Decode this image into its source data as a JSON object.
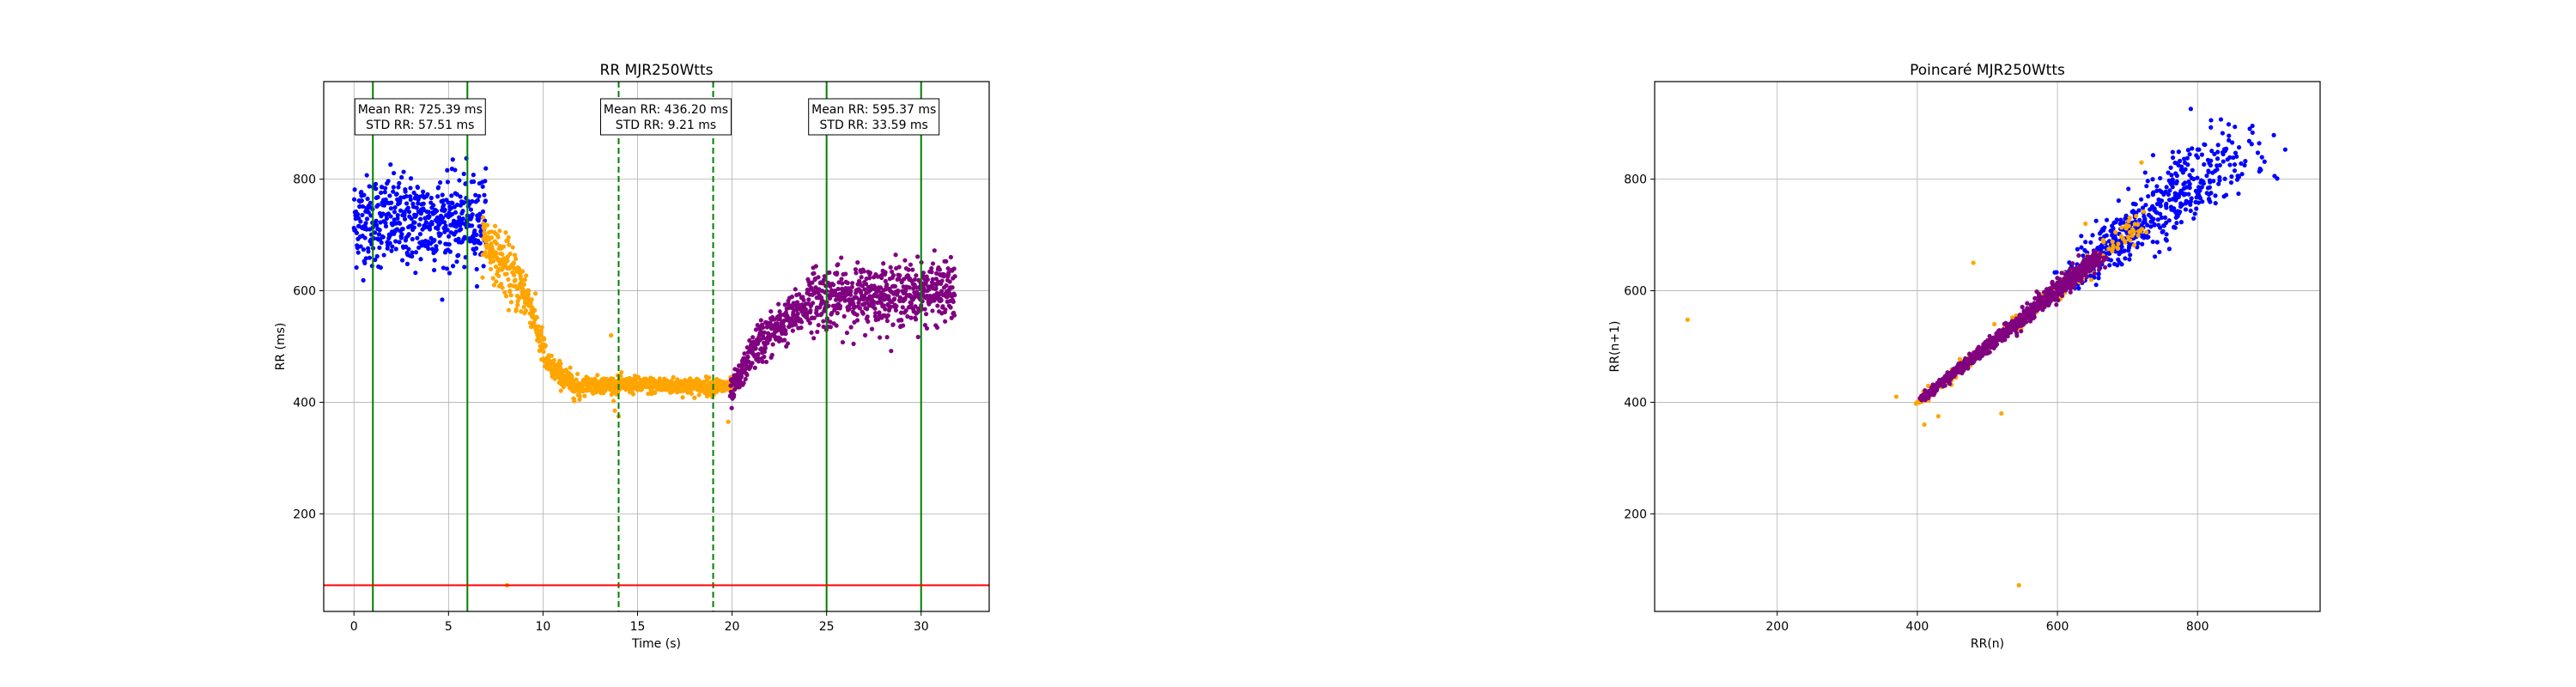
{
  "chart_data": [
    {
      "type": "scatter",
      "title": "RR MJR250Wtts",
      "xlabel": "Time (s)",
      "ylabel": "RR (ms)",
      "xlim": [
        -1.6,
        33.6
      ],
      "ylim": [
        25,
        975
      ],
      "xticks": [
        0,
        5,
        10,
        15,
        20,
        25,
        30
      ],
      "yticks": [
        200,
        400,
        600,
        800
      ],
      "grid": true,
      "series": [
        {
          "color": "#0000ff",
          "segments": [
            {
              "x0": 0.0,
              "x1": 7.0,
              "mean": 725,
              "std": 45,
              "jitter": 28
            }
          ]
        },
        {
          "color": "#ffa500",
          "segments": [
            {
              "x0": 6.8,
              "x1": 7.6,
              "from": 700,
              "to": 660,
              "jitter": 25
            },
            {
              "x0": 7.6,
              "x1": 9.2,
              "from": 660,
              "to": 590,
              "jitter": 30
            },
            {
              "x0": 9.2,
              "x1": 10.2,
              "from": 590,
              "to": 470,
              "jitter": 18
            },
            {
              "x0": 10.2,
              "x1": 12.0,
              "from": 470,
              "to": 420,
              "jitter": 12
            },
            {
              "x0": 12.0,
              "x1": 20.0,
              "from": 432,
              "to": 428,
              "jitter": 8
            }
          ],
          "outliers": [
            [
              8.1,
              72
            ],
            [
              13.6,
              520
            ],
            [
              13.8,
              385
            ],
            [
              14.0,
              375
            ],
            [
              19.8,
              365
            ]
          ]
        },
        {
          "color": "#800080",
          "segments": [
            {
              "x0": 19.9,
              "x1": 21.2,
              "from": 410,
              "to": 500,
              "jitter": 15
            },
            {
              "x0": 21.2,
              "x1": 24.0,
              "from": 500,
              "to": 575,
              "jitter": 22
            },
            {
              "x0": 24.0,
              "x1": 31.8,
              "from": 585,
              "to": 600,
              "jitter": 30
            }
          ]
        }
      ],
      "vlines": [
        {
          "x": 1,
          "style": "solid",
          "color": "#008000"
        },
        {
          "x": 6,
          "style": "solid",
          "color": "#008000"
        },
        {
          "x": 14,
          "style": "dashed",
          "color": "#008000"
        },
        {
          "x": 19,
          "style": "dashed",
          "color": "#008000"
        },
        {
          "x": 25,
          "style": "solid",
          "color": "#008000"
        },
        {
          "x": 30,
          "style": "solid",
          "color": "#008000"
        }
      ],
      "hline": {
        "y": 72,
        "color": "#ff0000"
      },
      "annotations": [
        {
          "x": 3.5,
          "mean": "Mean RR: 725.39 ms",
          "std": "STD RR: 57.51 ms"
        },
        {
          "x": 16.5,
          "mean": "Mean RR: 436.20 ms",
          "std": "STD RR: 9.21 ms"
        },
        {
          "x": 27.5,
          "mean": "Mean RR: 595.37 ms",
          "std": "STD RR: 33.59 ms"
        }
      ]
    },
    {
      "type": "scatter",
      "title": "Poincaré MJR250Wtts",
      "xlabel": "RR(n)",
      "ylabel": "RR(n+1)",
      "xlim": [
        25,
        975
      ],
      "ylim": [
        25,
        975
      ],
      "xticks": [
        200,
        400,
        600,
        800
      ],
      "yticks": [
        200,
        400,
        600,
        800
      ],
      "grid": true,
      "series": [
        {
          "color": "#0000ff",
          "region": {
            "from": 620,
            "to": 850,
            "jitter": 50
          }
        },
        {
          "color": "#ffa500",
          "region": {
            "from": 400,
            "to": 720,
            "jitter": 14
          },
          "outliers": [
            [
              72,
              548
            ],
            [
              545,
              72
            ],
            [
              520,
              380
            ],
            [
              480,
              650
            ],
            [
              430,
              375
            ],
            [
              370,
              410
            ],
            [
              410,
              360
            ],
            [
              510,
              540
            ],
            [
              640,
              720
            ],
            [
              720,
              830
            ]
          ]
        },
        {
          "color": "#800080",
          "region": {
            "from": 405,
            "to": 660,
            "jitter": 10
          }
        }
      ]
    }
  ]
}
